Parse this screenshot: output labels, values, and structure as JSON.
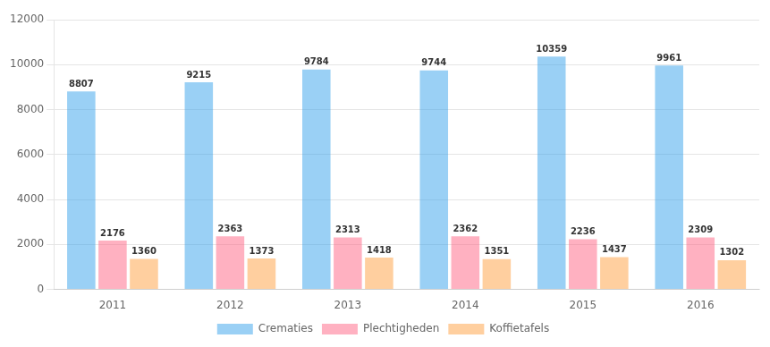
{
  "chart_data": {
    "type": "bar",
    "categories": [
      "2011",
      "2012",
      "2013",
      "2014",
      "2015",
      "2016"
    ],
    "series": [
      {
        "name": "Crematies",
        "values": [
          8807,
          9215,
          9784,
          9744,
          10359,
          9961
        ]
      },
      {
        "name": "Plechtigheden",
        "values": [
          2176,
          2363,
          2313,
          2362,
          2236,
          2309
        ]
      },
      {
        "name": "Koffietafels",
        "values": [
          1360,
          1373,
          1418,
          1351,
          1437,
          1302
        ]
      }
    ],
    "ylim": [
      0,
      12000
    ],
    "yticks": [
      0,
      2000,
      4000,
      6000,
      8000,
      10000,
      12000
    ],
    "grid": true,
    "legend": "bottom",
    "data_labels": true
  }
}
